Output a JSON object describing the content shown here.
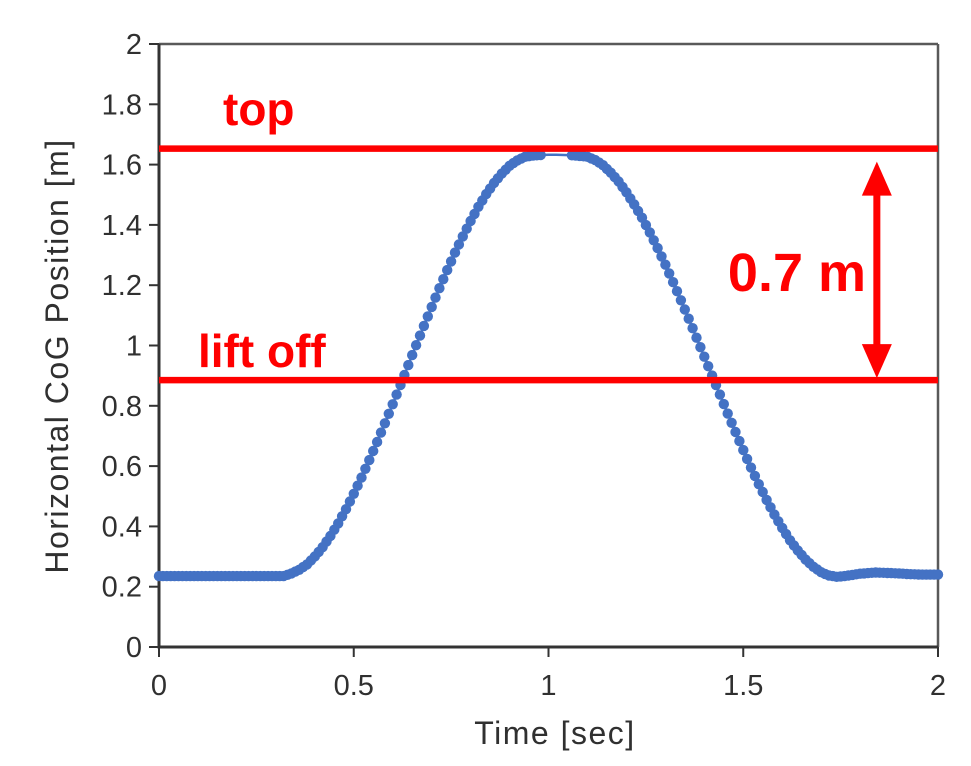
{
  "page": {
    "background": "#ffffff"
  },
  "chart_data": {
    "type": "scatter",
    "title": "",
    "xlabel": "Time [sec]",
    "ylabel": "Horizontal CoG Position [m]",
    "xlim": [
      0,
      2
    ],
    "ylim": [
      0,
      2
    ],
    "x_ticks": [
      0,
      0.5,
      1,
      1.5,
      2
    ],
    "x_tick_labels": [
      "0",
      "0.5",
      "1",
      "1.5",
      "2"
    ],
    "y_ticks": [
      0,
      0.2,
      0.4,
      0.6,
      0.8,
      1,
      1.2,
      1.4,
      1.6,
      1.8,
      2
    ],
    "y_tick_labels": [
      "0",
      "0.2",
      "0.4",
      "0.6",
      "0.8",
      "1",
      "1.2",
      "1.4",
      "1.6",
      "1.8",
      "2"
    ],
    "grid": false,
    "legend": false,
    "axis_color": "#333333",
    "border_color": "#595959",
    "tick_label_color": "#303030",
    "series": [
      {
        "name": "horizontal CoG position",
        "color": "#4472C4",
        "marker": "circle",
        "marker_radius": 5.2,
        "marker_gap_x": [
          0.985,
          1.055
        ],
        "x_start": 0,
        "x_step": 0.02,
        "y": [
          0.235,
          0.235,
          0.235,
          0.235,
          0.235,
          0.235,
          0.235,
          0.235,
          0.235,
          0.235,
          0.235,
          0.235,
          0.235,
          0.235,
          0.235,
          0.235,
          0.235,
          0.244,
          0.256,
          0.274,
          0.3,
          0.331,
          0.368,
          0.41,
          0.457,
          0.508,
          0.562,
          0.62,
          0.68,
          0.742,
          0.805,
          0.869,
          0.935,
          1.001,
          1.065,
          1.128,
          1.19,
          1.25,
          1.308,
          1.362,
          1.413,
          1.46,
          1.502,
          1.539,
          1.57,
          1.596,
          1.614,
          1.626,
          1.63,
          1.632,
          1.633,
          1.633,
          1.632,
          1.631,
          1.629,
          1.626,
          1.615,
          1.598,
          1.573,
          1.544,
          1.508,
          1.468,
          1.424,
          1.375,
          1.323,
          1.268,
          1.21,
          1.15,
          1.089,
          1.026,
          0.963,
          0.9,
          0.837,
          0.774,
          0.713,
          0.653,
          0.595,
          0.54,
          0.488,
          0.439,
          0.395,
          0.354,
          0.32,
          0.29,
          0.266,
          0.248,
          0.237,
          0.233,
          0.235,
          0.239,
          0.243,
          0.245,
          0.247,
          0.246,
          0.245,
          0.244,
          0.242,
          0.241,
          0.24,
          0.24,
          0.24
        ]
      }
    ],
    "annotations": {
      "top_line": {
        "label": "top",
        "y": 1.653,
        "color": "#FF0000"
      },
      "liftoff_line": {
        "label": "lift off",
        "y": 0.885,
        "color": "#FF0000"
      },
      "height_arrow": {
        "label": "0.7 m",
        "from_y": 0.885,
        "to_y": 1.653,
        "x_at": 1.843,
        "color": "#FF0000"
      }
    }
  }
}
